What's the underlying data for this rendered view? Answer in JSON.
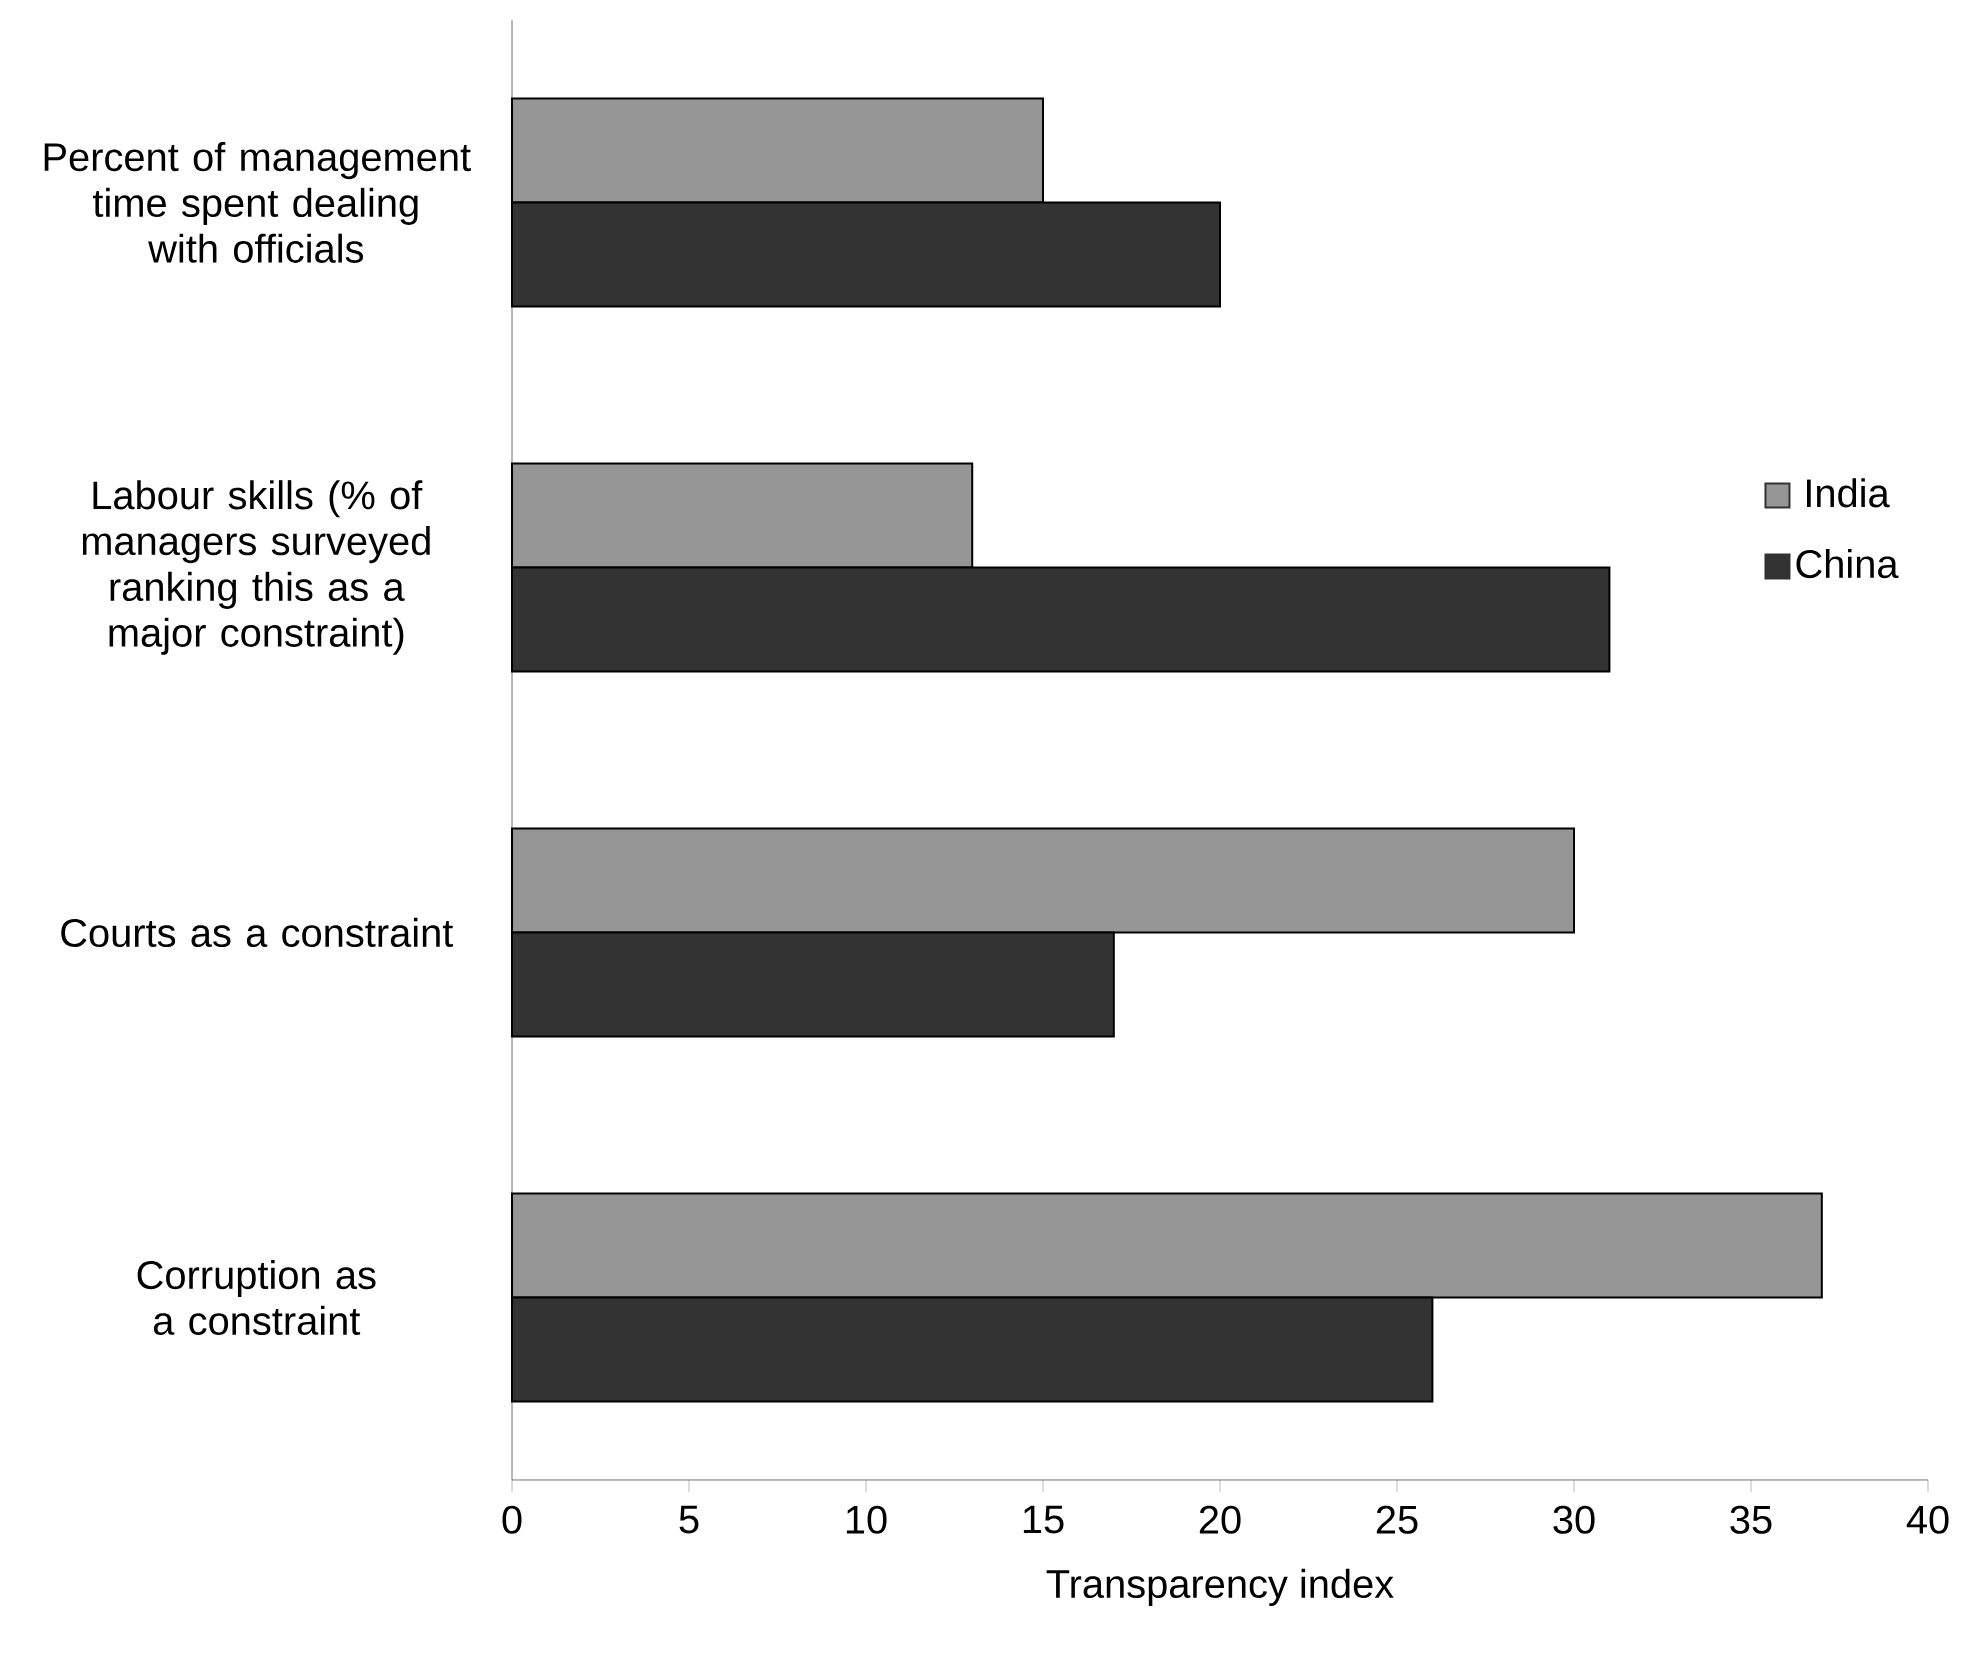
{
  "chart_data": {
    "type": "bar",
    "orientation": "horizontal",
    "xlabel": "Transparency index",
    "categories": [
      "Percent of management time spent dealing with officials",
      "Labour skills (% of managers surveyed ranking this as a major constraint)",
      "Courts as a constraint",
      "Corruption as a constraint"
    ],
    "series": [
      {
        "name": "India",
        "color": "#969696",
        "values": [
          15,
          13,
          30,
          37
        ]
      },
      {
        "name": "China",
        "color": "#333333",
        "values": [
          20,
          31,
          17,
          26
        ]
      }
    ],
    "xlim": [
      0,
      40
    ],
    "xticks": [
      0,
      5,
      10,
      15,
      20,
      25,
      30,
      35,
      40
    ],
    "legend": "right"
  }
}
